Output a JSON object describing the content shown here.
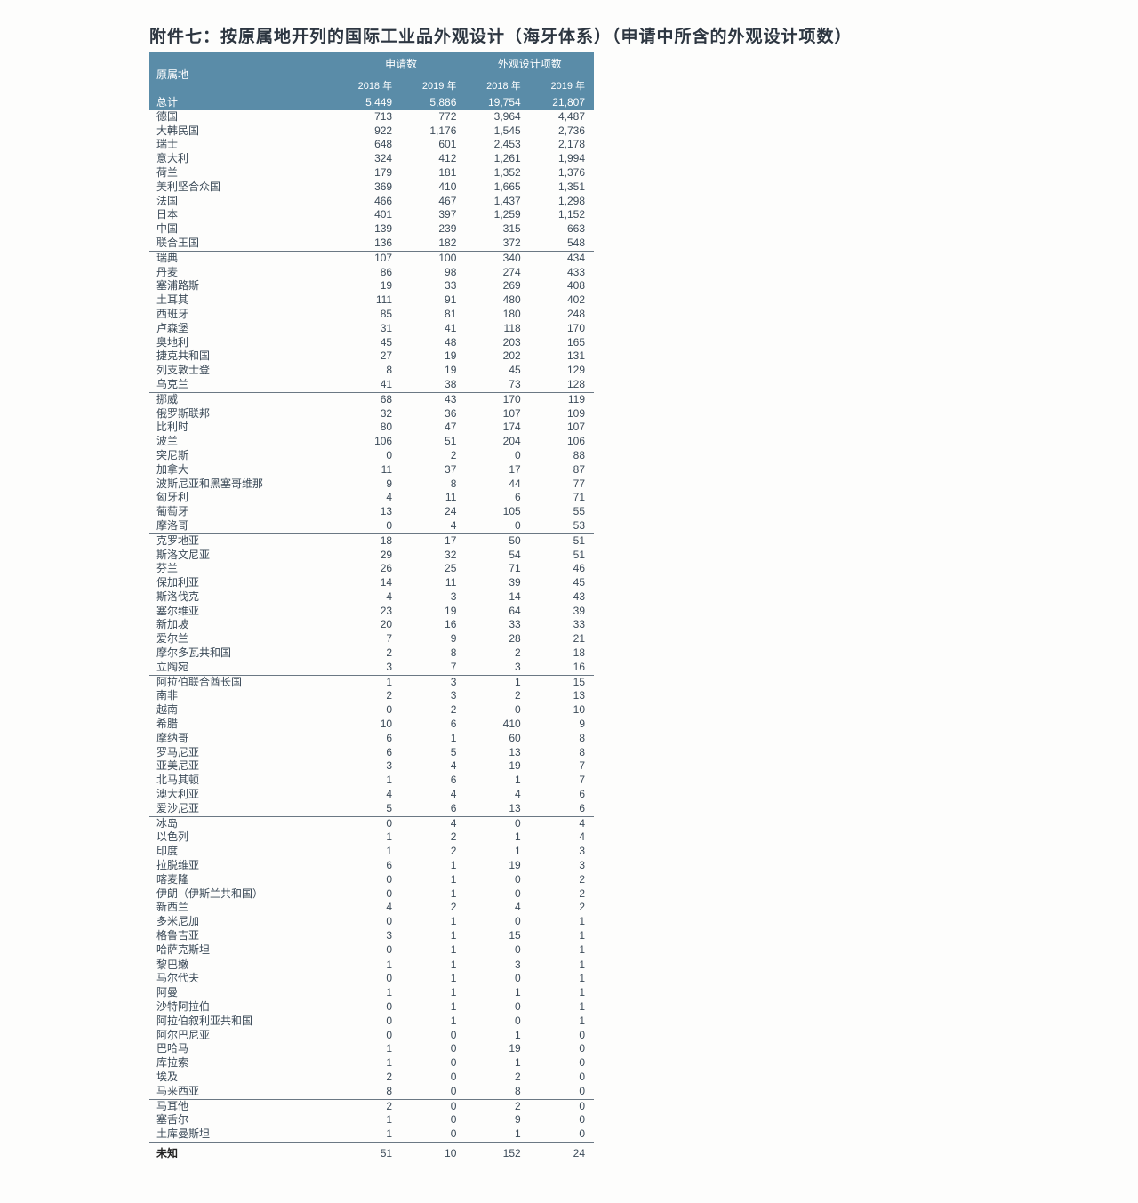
{
  "title": "附件七：按原属地开列的国际工业品外观设计（海牙体系）（申请中所含的外观设计项数）",
  "header": {
    "origin_label": "原属地",
    "group_applications": "申请数",
    "group_designs": "外观设计项数",
    "year_a": "2018 年",
    "year_b": "2019 年"
  },
  "total_row": {
    "label": "总计",
    "app_2018": "5,449",
    "app_2019": "5,886",
    "des_2018": "19,754",
    "des_2019": "21,807"
  },
  "unknown_row": {
    "label": "未知",
    "app_2018": "51",
    "app_2019": "10",
    "des_2018": "152",
    "des_2019": "24"
  },
  "sections": [
    [
      {
        "label": "德国",
        "a18": "713",
        "a19": "772",
        "d18": "3,964",
        "d19": "4,487"
      },
      {
        "label": "大韩民国",
        "a18": "922",
        "a19": "1,176",
        "d18": "1,545",
        "d19": "2,736"
      },
      {
        "label": "瑞士",
        "a18": "648",
        "a19": "601",
        "d18": "2,453",
        "d19": "2,178"
      },
      {
        "label": "意大利",
        "a18": "324",
        "a19": "412",
        "d18": "1,261",
        "d19": "1,994"
      },
      {
        "label": "荷兰",
        "a18": "179",
        "a19": "181",
        "d18": "1,352",
        "d19": "1,376"
      },
      {
        "label": "美利坚合众国",
        "a18": "369",
        "a19": "410",
        "d18": "1,665",
        "d19": "1,351"
      },
      {
        "label": "法国",
        "a18": "466",
        "a19": "467",
        "d18": "1,437",
        "d19": "1,298"
      },
      {
        "label": "日本",
        "a18": "401",
        "a19": "397",
        "d18": "1,259",
        "d19": "1,152"
      },
      {
        "label": "中国",
        "a18": "139",
        "a19": "239",
        "d18": "315",
        "d19": "663"
      },
      {
        "label": "联合王国",
        "a18": "136",
        "a19": "182",
        "d18": "372",
        "d19": "548"
      }
    ],
    [
      {
        "label": "瑞典",
        "a18": "107",
        "a19": "100",
        "d18": "340",
        "d19": "434"
      },
      {
        "label": "丹麦",
        "a18": "86",
        "a19": "98",
        "d18": "274",
        "d19": "433"
      },
      {
        "label": "塞浦路斯",
        "a18": "19",
        "a19": "33",
        "d18": "269",
        "d19": "408"
      },
      {
        "label": "土耳其",
        "a18": "111",
        "a19": "91",
        "d18": "480",
        "d19": "402"
      },
      {
        "label": "西班牙",
        "a18": "85",
        "a19": "81",
        "d18": "180",
        "d19": "248"
      },
      {
        "label": "卢森堡",
        "a18": "31",
        "a19": "41",
        "d18": "118",
        "d19": "170"
      },
      {
        "label": "奥地利",
        "a18": "45",
        "a19": "48",
        "d18": "203",
        "d19": "165"
      },
      {
        "label": "捷克共和国",
        "a18": "27",
        "a19": "19",
        "d18": "202",
        "d19": "131"
      },
      {
        "label": "列支敦士登",
        "a18": "8",
        "a19": "19",
        "d18": "45",
        "d19": "129"
      },
      {
        "label": "乌克兰",
        "a18": "41",
        "a19": "38",
        "d18": "73",
        "d19": "128"
      }
    ],
    [
      {
        "label": "挪威",
        "a18": "68",
        "a19": "43",
        "d18": "170",
        "d19": "119"
      },
      {
        "label": "俄罗斯联邦",
        "a18": "32",
        "a19": "36",
        "d18": "107",
        "d19": "109"
      },
      {
        "label": "比利时",
        "a18": "80",
        "a19": "47",
        "d18": "174",
        "d19": "107"
      },
      {
        "label": "波兰",
        "a18": "106",
        "a19": "51",
        "d18": "204",
        "d19": "106"
      },
      {
        "label": "突尼斯",
        "a18": "0",
        "a19": "2",
        "d18": "0",
        "d19": "88"
      },
      {
        "label": "加拿大",
        "a18": "11",
        "a19": "37",
        "d18": "17",
        "d19": "87"
      },
      {
        "label": "波斯尼亚和黑塞哥维那",
        "a18": "9",
        "a19": "8",
        "d18": "44",
        "d19": "77"
      },
      {
        "label": "匈牙利",
        "a18": "4",
        "a19": "11",
        "d18": "6",
        "d19": "71"
      },
      {
        "label": "葡萄牙",
        "a18": "13",
        "a19": "24",
        "d18": "105",
        "d19": "55"
      },
      {
        "label": "摩洛哥",
        "a18": "0",
        "a19": "4",
        "d18": "0",
        "d19": "53"
      }
    ],
    [
      {
        "label": "克罗地亚",
        "a18": "18",
        "a19": "17",
        "d18": "50",
        "d19": "51"
      },
      {
        "label": "斯洛文尼亚",
        "a18": "29",
        "a19": "32",
        "d18": "54",
        "d19": "51"
      },
      {
        "label": "芬兰",
        "a18": "26",
        "a19": "25",
        "d18": "71",
        "d19": "46"
      },
      {
        "label": "保加利亚",
        "a18": "14",
        "a19": "11",
        "d18": "39",
        "d19": "45"
      },
      {
        "label": "斯洛伐克",
        "a18": "4",
        "a19": "3",
        "d18": "14",
        "d19": "43"
      },
      {
        "label": "塞尔维亚",
        "a18": "23",
        "a19": "19",
        "d18": "64",
        "d19": "39"
      },
      {
        "label": "新加坡",
        "a18": "20",
        "a19": "16",
        "d18": "33",
        "d19": "33"
      },
      {
        "label": "爱尔兰",
        "a18": "7",
        "a19": "9",
        "d18": "28",
        "d19": "21"
      },
      {
        "label": "摩尔多瓦共和国",
        "a18": "2",
        "a19": "8",
        "d18": "2",
        "d19": "18"
      },
      {
        "label": "立陶宛",
        "a18": "3",
        "a19": "7",
        "d18": "3",
        "d19": "16"
      }
    ],
    [
      {
        "label": "阿拉伯联合酋长国",
        "a18": "1",
        "a19": "3",
        "d18": "1",
        "d19": "15"
      },
      {
        "label": "南非",
        "a18": "2",
        "a19": "3",
        "d18": "2",
        "d19": "13"
      },
      {
        "label": "越南",
        "a18": "0",
        "a19": "2",
        "d18": "0",
        "d19": "10"
      },
      {
        "label": "希腊",
        "a18": "10",
        "a19": "6",
        "d18": "410",
        "d19": "9"
      },
      {
        "label": "摩纳哥",
        "a18": "6",
        "a19": "1",
        "d18": "60",
        "d19": "8"
      },
      {
        "label": "罗马尼亚",
        "a18": "6",
        "a19": "5",
        "d18": "13",
        "d19": "8"
      },
      {
        "label": "亚美尼亚",
        "a18": "3",
        "a19": "4",
        "d18": "19",
        "d19": "7"
      },
      {
        "label": "北马其顿",
        "a18": "1",
        "a19": "6",
        "d18": "1",
        "d19": "7"
      },
      {
        "label": "澳大利亚",
        "a18": "4",
        "a19": "4",
        "d18": "4",
        "d19": "6"
      },
      {
        "label": "爱沙尼亚",
        "a18": "5",
        "a19": "6",
        "d18": "13",
        "d19": "6"
      }
    ],
    [
      {
        "label": "冰岛",
        "a18": "0",
        "a19": "4",
        "d18": "0",
        "d19": "4"
      },
      {
        "label": "以色列",
        "a18": "1",
        "a19": "2",
        "d18": "1",
        "d19": "4"
      },
      {
        "label": "印度",
        "a18": "1",
        "a19": "2",
        "d18": "1",
        "d19": "3"
      },
      {
        "label": "拉脱维亚",
        "a18": "6",
        "a19": "1",
        "d18": "19",
        "d19": "3"
      },
      {
        "label": "喀麦隆",
        "a18": "0",
        "a19": "1",
        "d18": "0",
        "d19": "2"
      },
      {
        "label": "伊朗（伊斯兰共和国）",
        "a18": "0",
        "a19": "1",
        "d18": "0",
        "d19": "2"
      },
      {
        "label": "新西兰",
        "a18": "4",
        "a19": "2",
        "d18": "4",
        "d19": "2"
      },
      {
        "label": "多米尼加",
        "a18": "0",
        "a19": "1",
        "d18": "0",
        "d19": "1"
      },
      {
        "label": "格鲁吉亚",
        "a18": "3",
        "a19": "1",
        "d18": "15",
        "d19": "1"
      },
      {
        "label": "哈萨克斯坦",
        "a18": "0",
        "a19": "1",
        "d18": "0",
        "d19": "1"
      }
    ],
    [
      {
        "label": "黎巴嫩",
        "a18": "1",
        "a19": "1",
        "d18": "3",
        "d19": "1"
      },
      {
        "label": "马尔代夫",
        "a18": "0",
        "a19": "1",
        "d18": "0",
        "d19": "1"
      },
      {
        "label": "阿曼",
        "a18": "1",
        "a19": "1",
        "d18": "1",
        "d19": "1"
      },
      {
        "label": "沙特阿拉伯",
        "a18": "0",
        "a19": "1",
        "d18": "0",
        "d19": "1"
      },
      {
        "label": "阿拉伯叙利亚共和国",
        "a18": "0",
        "a19": "1",
        "d18": "0",
        "d19": "1"
      },
      {
        "label": "阿尔巴尼亚",
        "a18": "0",
        "a19": "0",
        "d18": "1",
        "d19": "0"
      },
      {
        "label": "巴哈马",
        "a18": "1",
        "a19": "0",
        "d18": "19",
        "d19": "0"
      },
      {
        "label": "库拉索",
        "a18": "1",
        "a19": "0",
        "d18": "1",
        "d19": "0"
      },
      {
        "label": "埃及",
        "a18": "2",
        "a19": "0",
        "d18": "2",
        "d19": "0"
      },
      {
        "label": "马来西亚",
        "a18": "8",
        "a19": "0",
        "d18": "8",
        "d19": "0"
      }
    ],
    [
      {
        "label": "马耳他",
        "a18": "2",
        "a19": "0",
        "d18": "2",
        "d19": "0"
      },
      {
        "label": "塞舌尔",
        "a18": "1",
        "a19": "0",
        "d18": "9",
        "d19": "0"
      },
      {
        "label": "土库曼斯坦",
        "a18": "1",
        "a19": "0",
        "d18": "1",
        "d19": "0"
      }
    ]
  ]
}
